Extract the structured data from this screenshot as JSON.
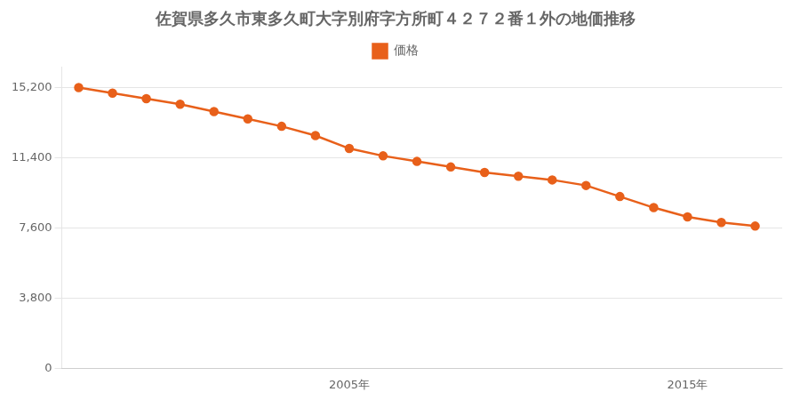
{
  "chart_data": {
    "type": "line",
    "title": "佐賀県多久市東多久町大字別府字方所町４２７２番１外の地価推移",
    "x": [
      1997,
      1998,
      1999,
      2000,
      2001,
      2002,
      2003,
      2004,
      2005,
      2006,
      2007,
      2008,
      2009,
      2010,
      2011,
      2012,
      2013,
      2014,
      2015,
      2016,
      2017
    ],
    "series": [
      {
        "name": "価格",
        "color": "#e8601a",
        "marker": "circle",
        "line_style": "solid",
        "values": [
          15200,
          14900,
          14600,
          14300,
          13900,
          13500,
          13100,
          12600,
          11900,
          11500,
          11200,
          10900,
          10600,
          10400,
          10200,
          9900,
          9300,
          8700,
          8200,
          7900,
          7700
        ]
      }
    ],
    "xlim": [
      1996.5,
      2017.8
    ],
    "xticks": [
      {
        "value": 2005,
        "label": "2005年"
      },
      {
        "value": 2015,
        "label": "2015年"
      }
    ],
    "ylim": [
      0,
      16300
    ],
    "yticks": [
      0,
      {
        "value": 3800,
        "label": "3,800"
      },
      {
        "value": 7600,
        "label": "7,600"
      },
      {
        "value": 11400,
        "label": "11,400"
      },
      {
        "value": 15200,
        "label": "15,200"
      }
    ],
    "grid": "y",
    "legend": "top"
  }
}
